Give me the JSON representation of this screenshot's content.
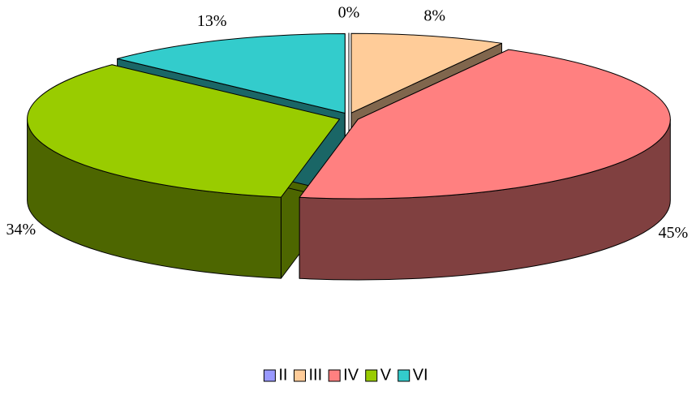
{
  "chart_data": {
    "type": "pie",
    "categories": [
      "II",
      "III",
      "IV",
      "V",
      "VI"
    ],
    "values": [
      0,
      8,
      45,
      34,
      13
    ],
    "value_labels": [
      "0%",
      "8%",
      "45%",
      "34%",
      "13%"
    ],
    "colors": [
      "#9999ff",
      "#ffcc99",
      "#ff8080",
      "#99cc00",
      "#33cccc"
    ],
    "legend": "bottom"
  }
}
